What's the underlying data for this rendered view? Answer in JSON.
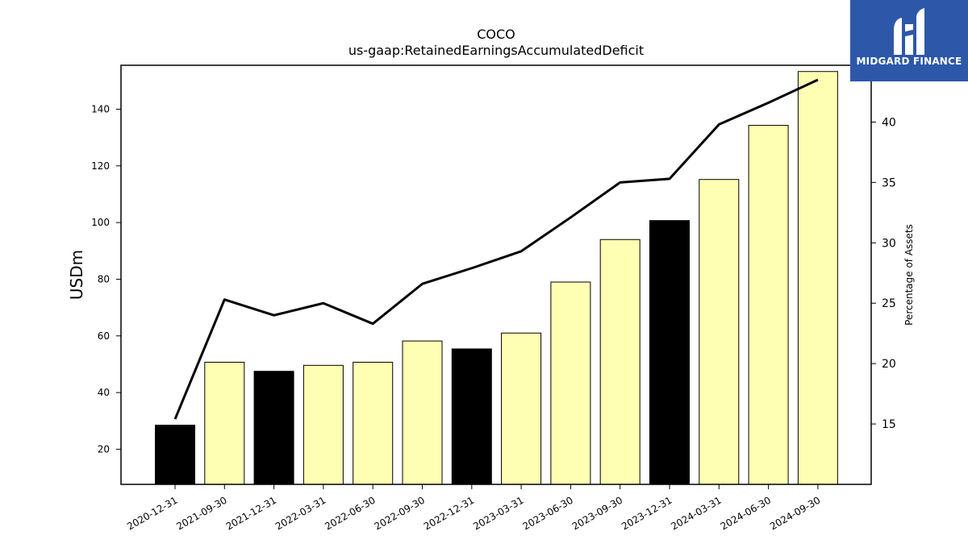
{
  "chart_data": {
    "type": "bar",
    "title": "COCO",
    "subtitle": "us-gaap:RetainedEarningsAccumulatedDeficit",
    "ylabel": "USDm",
    "y2label": "Percentage of Assets",
    "categories": [
      "2020-12-31",
      "2021-09-30",
      "2021-12-31",
      "2022-03-31",
      "2022-06-30",
      "2022-09-30",
      "2022-12-31",
      "2023-03-31",
      "2023-06-30",
      "2023-09-30",
      "2023-12-31",
      "2024-03-31",
      "2024-06-30",
      "2024-09-30"
    ],
    "series": [
      {
        "type": "bar",
        "values": [
          28.5,
          50.7,
          47.5,
          49.6,
          50.7,
          58.2,
          55.4,
          61.0,
          79.0,
          94.0,
          100.7,
          115.2,
          134.3,
          153.3
        ],
        "colors": [
          "#000000",
          "#ffffb3",
          "#000000",
          "#ffffb3",
          "#ffffb3",
          "#ffffb3",
          "#000000",
          "#ffffb3",
          "#ffffb3",
          "#ffffb3",
          "#000000",
          "#ffffb3",
          "#ffffb3",
          "#ffffb3"
        ]
      },
      {
        "type": "line",
        "axis": "right",
        "color": "#000000",
        "values": [
          15.4,
          25.3,
          24.0,
          25.0,
          23.3,
          26.6,
          27.9,
          29.3,
          32.1,
          35.0,
          35.3,
          39.8,
          41.6,
          43.5
        ]
      }
    ],
    "ylim": [
      7.6,
      155.5
    ],
    "yticks": [
      20,
      40,
      60,
      80,
      100,
      120,
      140
    ],
    "y2lim": [
      10.0,
      44.7
    ],
    "y2ticks": [
      15,
      20,
      25,
      30,
      35,
      40
    ],
    "grid": false
  },
  "logo": {
    "text": "MIDGARD FINANCE",
    "color": "#2d58a9"
  }
}
